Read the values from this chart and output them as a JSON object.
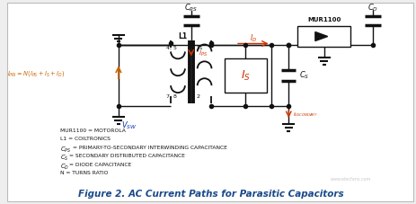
{
  "title": "Figure 2. AC Current Paths for Parasitic Capacitors",
  "title_color": "#1a4a8a",
  "title_fontsize": 7.5,
  "bg_color": "#eeeeee",
  "legend_lines": [
    "MUR1100 = MOTOROLA",
    "L1 = COILTRONICS",
    "CPS = PRIMARY-TO-SECONDARY INTERWINDING CAPACITANCE",
    "CS = SECONDARY DISTRIBUTED CAPACITANCE",
    "CD = DIODE CAPACITANCE",
    "N = TURNS RATIO"
  ],
  "circuit_color": "#111111",
  "red_color": "#cc3300",
  "orange_color": "#cc6600",
  "blue_color": "#0033aa"
}
